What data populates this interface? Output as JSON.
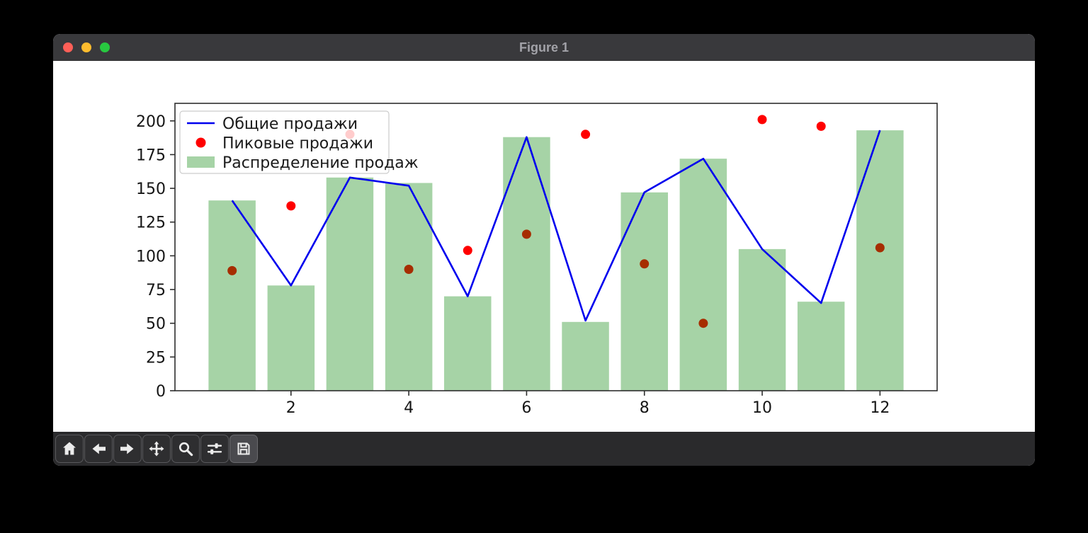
{
  "window": {
    "title": "Figure 1",
    "controls": [
      {
        "name": "close",
        "color": "#ff5f57"
      },
      {
        "name": "minimize",
        "color": "#febc2e"
      },
      {
        "name": "maximize",
        "color": "#28c840"
      }
    ]
  },
  "toolbar": {
    "buttons": [
      {
        "icon": "home-icon"
      },
      {
        "icon": "back-arrow-icon"
      },
      {
        "icon": "forward-arrow-icon"
      },
      {
        "icon": "pan-move-icon"
      },
      {
        "icon": "zoom-magnifier-icon"
      },
      {
        "icon": "subplot-sliders-icon"
      },
      {
        "icon": "save-floppy-icon",
        "active": true
      }
    ]
  },
  "chart_data": {
    "type": "combo(line+scatter+bar)",
    "x": [
      1,
      2,
      3,
      4,
      5,
      6,
      7,
      8,
      9,
      10,
      11,
      12
    ],
    "series": [
      {
        "name": "Общие продажи",
        "type": "line",
        "color": "#0000ee",
        "values": [
          141,
          78,
          158,
          152,
          70,
          188,
          52,
          147,
          172,
          105,
          65,
          193
        ]
      },
      {
        "name": "Пиковые продажи",
        "type": "scatter",
        "color": "#ff0000",
        "values": [
          89,
          137,
          190,
          90,
          104,
          116,
          190,
          94,
          50,
          201,
          196,
          106
        ]
      },
      {
        "name": "Распределение продаж",
        "type": "bar",
        "color": "#008000",
        "alpha": 0.35,
        "values": [
          141,
          78,
          158,
          154,
          70,
          188,
          51,
          147,
          172,
          105,
          66,
          193
        ]
      }
    ],
    "title": "",
    "xlabel": "",
    "ylabel": "",
    "xticks": [
      2,
      4,
      6,
      8,
      10,
      12
    ],
    "yticks": [
      0,
      25,
      50,
      75,
      100,
      125,
      150,
      175,
      200
    ],
    "xlim": [
      0.03,
      12.97
    ],
    "ylim": [
      0,
      213
    ],
    "bar_width": 0.8,
    "grid": false,
    "legend_position": "upper left",
    "legend_framealpha": 0.8,
    "legend_border_color": "#cccccc",
    "spine_color": "#2e2e2e",
    "tick_label_color": "#151515",
    "tick_font_px": 22,
    "legend_font_px": 22
  }
}
